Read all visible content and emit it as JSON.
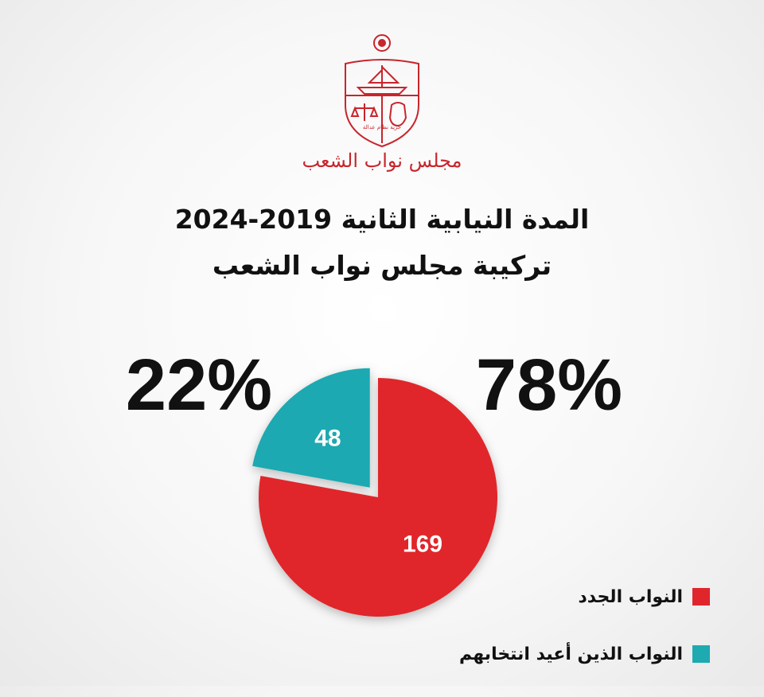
{
  "header": {
    "org_name": "مجلس نواب الشعب",
    "title": "المدة النيابية الثانية 2019-2024",
    "subtitle": "تركيبة مجلس نواب الشعب"
  },
  "colors": {
    "new": "#e0262c",
    "reelected": "#1fa9b1",
    "emblem": "#c8252c"
  },
  "chart_data": {
    "type": "pie",
    "title": "تركيبة مجلس نواب الشعب",
    "slices": [
      {
        "name": "النواب الجدد",
        "value": 169,
        "percent": "78%",
        "color": "#e0262c"
      },
      {
        "name": "النواب الذين أعيد انتخابهم",
        "value": 48,
        "percent": "22%",
        "color": "#1fa9b1"
      }
    ],
    "legend_placement": "bottom-right"
  }
}
